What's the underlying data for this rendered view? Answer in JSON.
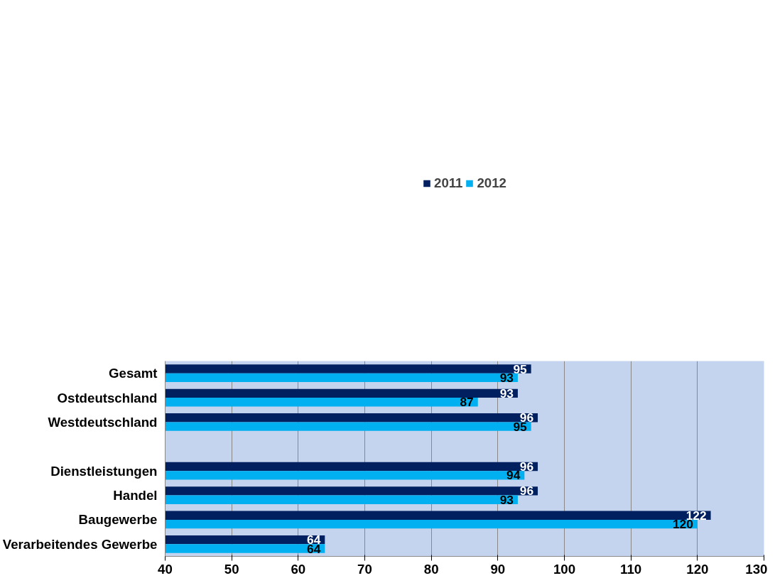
{
  "chart_data": {
    "type": "bar",
    "orientation": "horizontal",
    "categories": [
      "Gesamt",
      "Ostdeutschland",
      "Westdeutschland",
      null,
      "Dienstleistungen",
      "Handel",
      "Baugewerbe",
      "Verarbeitendes Gewerbe"
    ],
    "series": [
      {
        "name": "2011",
        "color": "#002060",
        "values": [
          95,
          93,
          96,
          null,
          96,
          96,
          122,
          64
        ]
      },
      {
        "name": "2012",
        "color": "#00b0f0",
        "values": [
          93,
          87,
          95,
          null,
          94,
          93,
          120,
          64
        ]
      }
    ],
    "xlim": [
      40,
      130
    ],
    "xticks": [
      40,
      50,
      60,
      70,
      80,
      90,
      100,
      110,
      120,
      130
    ],
    "grid": "x",
    "legend": "top",
    "data_labels": true
  }
}
